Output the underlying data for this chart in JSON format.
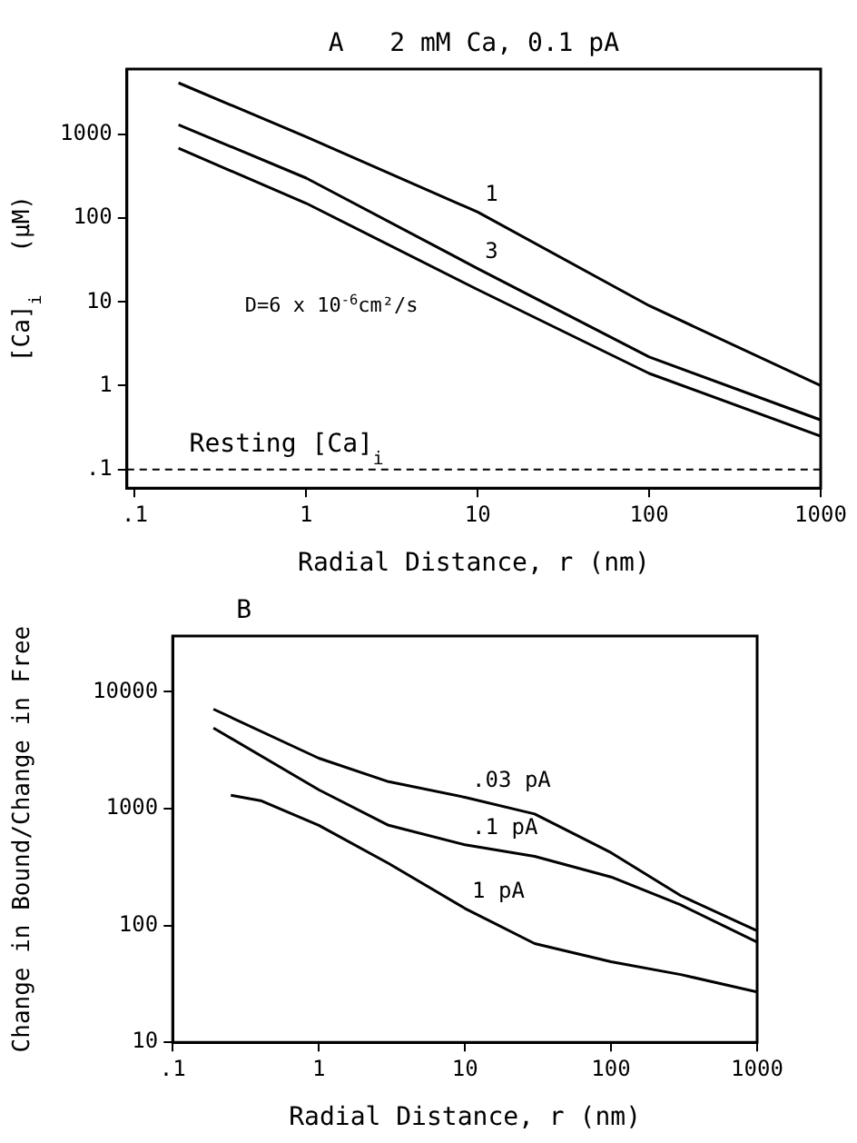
{
  "chart_data": [
    {
      "type": "line",
      "title": "A   2 mM Ca, 0.1 pA",
      "xlabel": "Radial Distance, r (nm)",
      "ylabel": "[Ca]$_{i}$   (μM)",
      "log": "xy",
      "grid": false,
      "legend": false,
      "marker": "none",
      "line_style": "solid",
      "xlim": [
        0.09,
        1000
      ],
      "ylim": [
        0.06,
        6000
      ],
      "xticks": [
        {
          "value": 0.1,
          "label": ".1"
        },
        1,
        10,
        100,
        1000
      ],
      "yticks": [
        {
          "value": 0.1,
          "label": ".1"
        },
        1,
        10,
        100,
        1000
      ],
      "series": [
        {
          "name": "1",
          "color": "#000000",
          "x": [
            0.18,
            1,
            10,
            100,
            1000
          ],
          "values": [
            4100,
            930,
            118,
            9,
            1
          ]
        },
        {
          "name": "3",
          "color": "#000000",
          "x": [
            0.18,
            1,
            10,
            100,
            1000
          ],
          "values": [
            1300,
            300,
            25,
            2.2,
            0.39
          ]
        },
        {
          "color": "#000000",
          "x": [
            0.18,
            1,
            10,
            100,
            1000
          ],
          "values": [
            680,
            150,
            14,
            1.4,
            0.25
          ]
        }
      ],
      "ref_lines": [
        {
          "axis": "y",
          "value": 0.1,
          "label": "Resting [Ca]$_{i}$",
          "color": "#000000",
          "line_style": "dashed"
        }
      ],
      "annotations": [
        "D=6 x 10$^{-6}$cm²/s"
      ]
    },
    {
      "type": "line",
      "title": "B",
      "xlabel": "Radial Distance, r (nm)",
      "ylabel": "Change in Bound/Change in Free",
      "log": "xy",
      "grid": false,
      "legend": false,
      "marker": "none",
      "line_style": "solid",
      "xlim": [
        0.1,
        1000
      ],
      "ylim": [
        10,
        30000
      ],
      "xticks": [
        {
          "value": 0.1,
          "label": ".1"
        },
        1,
        10,
        100,
        1000
      ],
      "yticks": [
        10,
        100,
        1000,
        10000
      ],
      "series": [
        {
          "name": ".03 pA",
          "color": "#000000",
          "x": [
            0.19,
            1,
            3,
            10,
            30,
            100,
            300,
            1000
          ],
          "values": [
            7100,
            2700,
            1700,
            1250,
            900,
            420,
            180,
            90
          ]
        },
        {
          "name": ".1 pA",
          "color": "#000000",
          "x": [
            0.19,
            1,
            3,
            10,
            30,
            100,
            300,
            1000
          ],
          "values": [
            4900,
            1450,
            720,
            490,
            390,
            260,
            150,
            72
          ]
        },
        {
          "name": "1 pA",
          "color": "#000000",
          "x": [
            0.25,
            0.4,
            1,
            3,
            10,
            30,
            100,
            300,
            1000
          ],
          "values": [
            1300,
            1170,
            720,
            340,
            140,
            70,
            49,
            38,
            27
          ]
        }
      ]
    }
  ]
}
